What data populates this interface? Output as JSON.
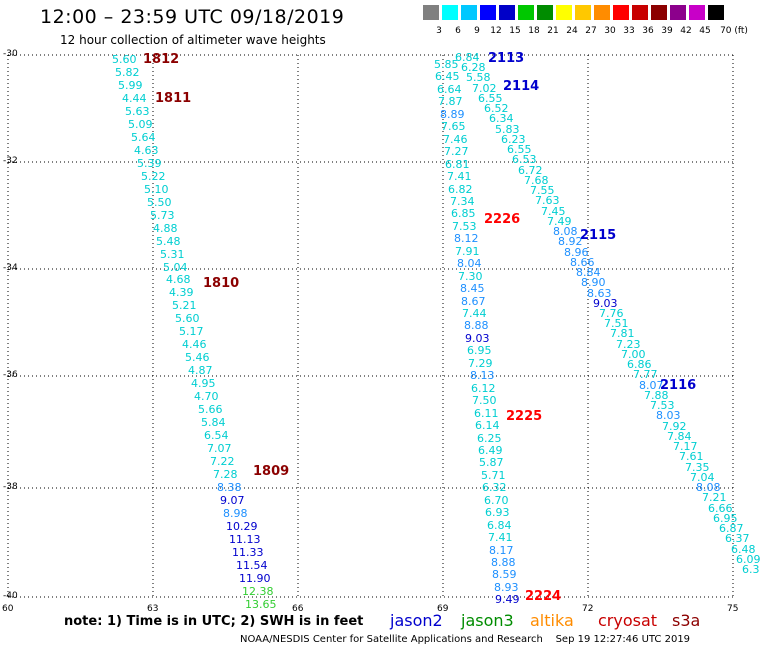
{
  "header": {
    "title": "12:00 – 23:59 UTC 09/18/2019",
    "subtitle": "12 hour collection of altimeter wave heights"
  },
  "scale": {
    "colors": [
      "#808080",
      "#00ffff",
      "#00c8ff",
      "#0000ff",
      "#0000c8",
      "#00c800",
      "#008c00",
      "#ffff00",
      "#ffc800",
      "#ff8c00",
      "#ff0000",
      "#c80000",
      "#8c0000",
      "#8c008c",
      "#c800c8",
      "#000000"
    ],
    "labels": [
      "3",
      "6",
      "9",
      "12",
      "15",
      "18",
      "21",
      "24",
      "27",
      "30",
      "33",
      "36",
      "39",
      "42",
      "45",
      "70 (ft)"
    ]
  },
  "axes": {
    "lat_labels": [
      "-30",
      "-32",
      "-34",
      "-36",
      "-38",
      "-40"
    ],
    "lon_labels": [
      "60",
      "63",
      "66",
      "69",
      "72",
      "75"
    ]
  },
  "tracks": [
    {
      "id": "1812",
      "color": "#8b0000"
    },
    {
      "id": "1811",
      "color": "#8b0000"
    },
    {
      "id": "1810",
      "color": "#8b0000"
    },
    {
      "id": "1809",
      "color": "#8b0000"
    },
    {
      "id": "2113",
      "color": "#0000cd"
    },
    {
      "id": "2114",
      "color": "#0000cd"
    },
    {
      "id": "2115",
      "color": "#0000cd"
    },
    {
      "id": "2116",
      "color": "#0000cd"
    },
    {
      "id": "2226",
      "color": "#ff0000"
    },
    {
      "id": "2225",
      "color": "#ff0000"
    },
    {
      "id": "2224",
      "color": "#ff0000"
    }
  ],
  "track_a": [
    "5.60",
    "5.82",
    "5.99",
    "4.44",
    "5.63",
    "5.09",
    "5.64",
    "4.63",
    "5.39",
    "5.22",
    "5.10",
    "5.50",
    "5.73",
    "4.88",
    "5.48",
    "5.31",
    "5.04",
    "4.68",
    "4.39",
    "5.21",
    "5.60",
    "5.17",
    "4.46",
    "5.46",
    "4.87",
    "4.95",
    "4.70",
    "5.66",
    "5.84",
    "6.54",
    "7.07",
    "7.22",
    "7.28",
    "8.38",
    "9.07",
    "8.98",
    "10.29",
    "11.13",
    "11.33",
    "11.54",
    "11.90",
    "12.38",
    "13.65"
  ],
  "track_b": [
    "5.85",
    "6.45",
    "6.64",
    "7.87",
    "8.89",
    "7.65",
    "7.46",
    "7.27",
    "6.81",
    "7.41",
    "6.82",
    "7.34",
    "6.85",
    "7.53",
    "8.12",
    "7.91",
    "8.04",
    "7.30",
    "8.45",
    "8.67",
    "7.44",
    "8.88",
    "9.03",
    "6.95",
    "7.29",
    "8.13",
    "6.12",
    "7.50",
    "6.11",
    "6.14",
    "6.25",
    "6.49",
    "5.87",
    "5.71",
    "6.32",
    "6.70",
    "6.93",
    "6.84",
    "7.41",
    "8.17",
    "8.88",
    "8.59",
    "8.93",
    "9.49"
  ],
  "track_c": [
    "6.84",
    "6.28",
    "5.58",
    "7.02",
    "6.55",
    "6.52",
    "6.34",
    "5.83",
    "6.23",
    "6.55",
    "6.53",
    "6.72",
    "7.68",
    "7.55",
    "7.63",
    "7.45",
    "7.49",
    "8.08",
    "8.92",
    "8.96",
    "8.66",
    "8.84",
    "8.90",
    "8.63",
    "9.03",
    "7.76",
    "7.51",
    "7.81",
    "7.23",
    "7.00",
    "6.86",
    "7.77",
    "8.07",
    "7.88",
    "7.53",
    "8.03",
    "7.92",
    "7.84",
    "7.17",
    "7.61",
    "7.35",
    "7.04",
    "8.08",
    "7.21",
    "6.66",
    "6.95",
    "6.87",
    "6.37",
    "6.48",
    "6.09",
    "6.3"
  ],
  "note": "note:  1) Time is in UTC;  2) SWH is in feet",
  "legend": [
    {
      "label": "jason2",
      "color": "#0000cd"
    },
    {
      "label": "jason3",
      "color": "#008c00"
    },
    {
      "label": "altika",
      "color": "#ff8c00"
    },
    {
      "label": "cryosat",
      "color": "#c80000"
    },
    {
      "label": "s3a",
      "color": "#8c0000"
    }
  ],
  "footer": "NOAA/NESDIS Center for Satellite Applications and Research    Sep 19 12:27:46 UTC 2019"
}
